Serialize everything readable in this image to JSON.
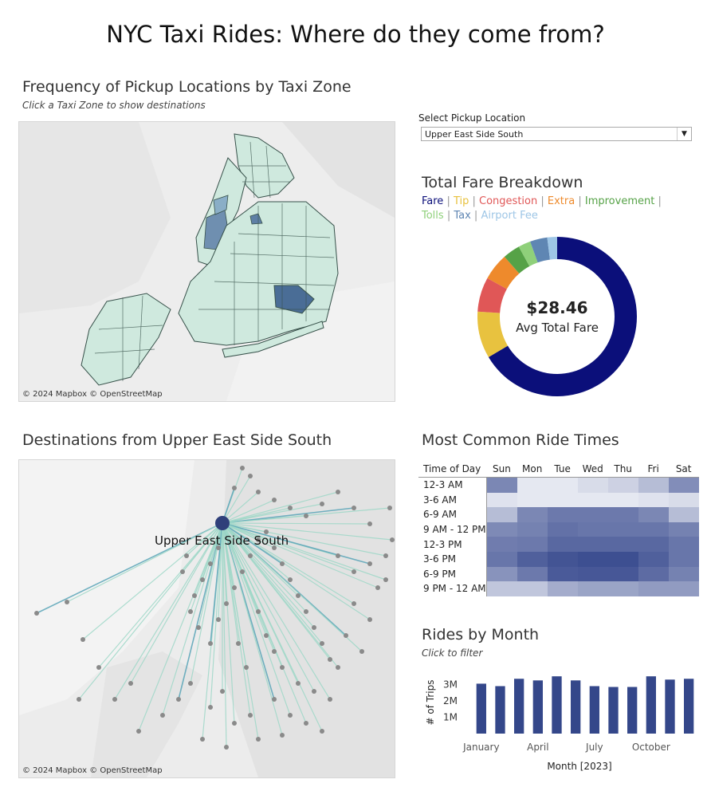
{
  "title": "NYC Taxi Rides: Where do they come from?",
  "pickup_map": {
    "title": "Frequency of Pickup Locations by Taxi Zone",
    "subtitle": "Click a Taxi Zone to show destinations",
    "credit": "© 2024 Mapbox © OpenStreetMap"
  },
  "select": {
    "label": "Select Pickup Location",
    "value": "Upper East Side South"
  },
  "fare": {
    "title": "Total Fare Breakdown",
    "legend": [
      {
        "label": "Fare",
        "color": "#0b0f7a"
      },
      {
        "label": "Tip",
        "color": "#e8c23f"
      },
      {
        "label": "Congestion",
        "color": "#e05757"
      },
      {
        "label": "Extra",
        "color": "#ee8a2c"
      },
      {
        "label": "Improvement",
        "color": "#56a247"
      },
      {
        "label": "Tolls",
        "color": "#8fd07a"
      },
      {
        "label": "Tax",
        "color": "#5f86b3"
      },
      {
        "label": "Airport Fee",
        "color": "#9ec6e6"
      }
    ],
    "total_value": "$28.46",
    "total_label": "Avg Total Fare"
  },
  "destinations": {
    "title": "Destinations from Upper East Side South",
    "origin_label": "Upper East Side South",
    "credit": "© 2024 Mapbox © OpenStreetMap"
  },
  "ride_times": {
    "title": "Most Common Ride Times",
    "header": "Time of Day",
    "days": [
      "Sun",
      "Mon",
      "Tue",
      "Wed",
      "Thu",
      "Fri",
      "Sat"
    ],
    "rows": [
      "12-3 AM",
      "3-6 AM",
      "6-9 AM",
      "9 AM - 12 PM",
      "12-3 PM",
      "3-6 PM",
      "6-9 PM",
      "9 PM - 12 AM"
    ],
    "intensity": [
      [
        0.62,
        0.05,
        0.05,
        0.12,
        0.18,
        0.3,
        0.58
      ],
      [
        0.08,
        0.05,
        0.05,
        0.05,
        0.05,
        0.08,
        0.12
      ],
      [
        0.3,
        0.62,
        0.7,
        0.7,
        0.7,
        0.62,
        0.3
      ],
      [
        0.6,
        0.65,
        0.75,
        0.72,
        0.72,
        0.72,
        0.65
      ],
      [
        0.68,
        0.7,
        0.8,
        0.8,
        0.8,
        0.8,
        0.72
      ],
      [
        0.72,
        0.85,
        0.92,
        0.95,
        0.95,
        0.85,
        0.72
      ],
      [
        0.55,
        0.7,
        0.88,
        0.9,
        0.9,
        0.78,
        0.65
      ],
      [
        0.25,
        0.25,
        0.4,
        0.45,
        0.45,
        0.5,
        0.5
      ]
    ]
  },
  "rides_month": {
    "title": "Rides by Month",
    "subtitle": "Click to filter",
    "ylabel": "# of Trips",
    "xlabel": "Month [2023]",
    "yticks": [
      "3M",
      "2M",
      "1M"
    ],
    "xticks": [
      "January",
      "April",
      "July",
      "October"
    ],
    "bar_color": "#34478a"
  },
  "chart_data": {
    "type": "bar",
    "categories": [
      "Jan",
      "Feb",
      "Mar",
      "Apr",
      "May",
      "Jun",
      "Jul",
      "Aug",
      "Sep",
      "Oct",
      "Nov",
      "Dec"
    ],
    "values": [
      3.05,
      2.9,
      3.35,
      3.25,
      3.5,
      3.25,
      2.9,
      2.85,
      2.85,
      3.5,
      3.3,
      3.35
    ],
    "xlabel": "Month [2023]",
    "ylabel": "# of Trips",
    "ylim": [
      0,
      3.8
    ],
    "title": "Rides by Month"
  }
}
